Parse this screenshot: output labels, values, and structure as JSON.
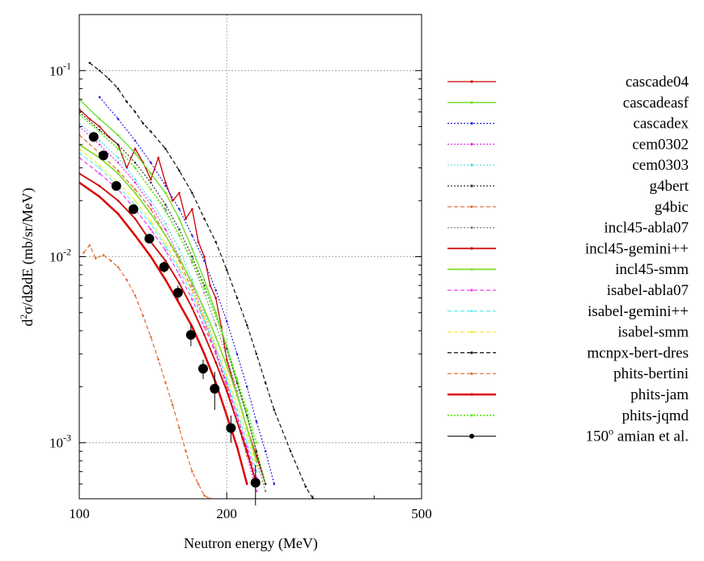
{
  "chart_data": {
    "type": "line",
    "title": "",
    "xlabel": "Neutron energy (MeV)",
    "ylabel_parts": {
      "d": "d",
      "sup": "2",
      "rest": "σ/dΩdE (mb/sr/MeV)"
    },
    "x_scale": "log",
    "y_scale": "log",
    "xlim": [
      100,
      500
    ],
    "ylim": [
      0.0005,
      0.2
    ],
    "x_ticks": [
      {
        "value": 100,
        "label": "100"
      },
      {
        "value": 200,
        "label": "200"
      },
      {
        "value": 500,
        "label": "500"
      }
    ],
    "y_ticks": [
      {
        "value": 0.001,
        "base": "10",
        "exp": "-3"
      },
      {
        "value": 0.01,
        "base": "10",
        "exp": "-2"
      },
      {
        "value": 0.1,
        "base": "10",
        "exp": "-1"
      }
    ],
    "grid": true,
    "legend_position": "right",
    "experiment_label_parts": {
      "num": "150",
      "sup": "o",
      "rest": " amian et al."
    },
    "series": [
      {
        "name": "cascade04",
        "color": "#cc0000",
        "style": "solid",
        "width": 1.3,
        "x": [
          100,
          105,
          110,
          115,
          120,
          125,
          130,
          135,
          140,
          145,
          150,
          155,
          160,
          165,
          170,
          175,
          180,
          185,
          190,
          195,
          200,
          210,
          220,
          230,
          240
        ],
        "y": [
          0.062,
          0.055,
          0.05,
          0.044,
          0.04,
          0.03,
          0.038,
          0.032,
          0.026,
          0.034,
          0.025,
          0.02,
          0.022,
          0.016,
          0.018,
          0.012,
          0.01,
          0.007,
          0.006,
          0.0042,
          0.0028,
          0.0018,
          0.0012,
          0.00085,
          0.0006
        ]
      },
      {
        "name": "cascadeasf",
        "color": "#66dd22",
        "style": "solid",
        "width": 1.3,
        "x": [
          100,
          110,
          120,
          130,
          140,
          150,
          160,
          170,
          180,
          190,
          200,
          210,
          220,
          230,
          240
        ],
        "y": [
          0.07,
          0.055,
          0.045,
          0.036,
          0.028,
          0.022,
          0.016,
          0.011,
          0.0075,
          0.005,
          0.0033,
          0.0021,
          0.0014,
          0.0009,
          0.0006
        ]
      },
      {
        "name": "cascadex",
        "color": "#2222dd",
        "style": "dotted",
        "width": 1.2,
        "x": [
          110,
          120,
          130,
          140,
          150,
          160,
          170,
          180,
          190,
          200,
          210,
          220,
          230,
          240,
          250
        ],
        "y": [
          0.072,
          0.055,
          0.042,
          0.032,
          0.024,
          0.018,
          0.013,
          0.0095,
          0.0066,
          0.0045,
          0.003,
          0.002,
          0.0013,
          0.0009,
          0.0006
        ]
      },
      {
        "name": "cem0302",
        "color": "#dd33dd",
        "style": "dotted",
        "width": 1.2,
        "x": [
          100,
          110,
          120,
          130,
          140,
          150,
          160,
          170,
          180,
          190,
          200,
          210,
          220,
          230
        ],
        "y": [
          0.05,
          0.04,
          0.032,
          0.025,
          0.019,
          0.014,
          0.01,
          0.007,
          0.0047,
          0.0031,
          0.002,
          0.0013,
          0.00085,
          0.00055
        ]
      },
      {
        "name": "cem0303",
        "color": "#55dddd",
        "style": "dotted",
        "width": 1.2,
        "x": [
          100,
          110,
          120,
          130,
          140,
          150,
          160,
          170,
          180,
          190,
          200,
          210,
          220,
          230
        ],
        "y": [
          0.052,
          0.042,
          0.034,
          0.026,
          0.02,
          0.015,
          0.011,
          0.0075,
          0.005,
          0.0033,
          0.0021,
          0.0014,
          0.0009,
          0.0006
        ]
      },
      {
        "name": "g4bert",
        "color": "#333333",
        "style": "dotted",
        "width": 1.2,
        "x": [
          100,
          110,
          120,
          130,
          140,
          150,
          160,
          170,
          180,
          190,
          200,
          210,
          220,
          230,
          240
        ],
        "y": [
          0.06,
          0.048,
          0.04,
          0.032,
          0.025,
          0.019,
          0.014,
          0.01,
          0.007,
          0.0048,
          0.0032,
          0.0021,
          0.0014,
          0.0009,
          0.0006
        ]
      },
      {
        "name": "g4bic",
        "color": "#e06a30",
        "style": "dashed",
        "width": 1.2,
        "x": [
          100,
          110,
          120,
          130,
          140,
          150,
          160,
          170,
          180,
          190,
          200,
          210,
          220
        ],
        "y": [
          0.045,
          0.036,
          0.029,
          0.023,
          0.018,
          0.013,
          0.0095,
          0.0066,
          0.0045,
          0.003,
          0.002,
          0.0013,
          0.00085
        ]
      },
      {
        "name": "incl45-abla07",
        "color": "#888888",
        "style": "dotted",
        "width": 1.2,
        "x": [
          100,
          110,
          120,
          130,
          140,
          150,
          160,
          170,
          180,
          190,
          200,
          210,
          220,
          230,
          240
        ],
        "y": [
          0.058,
          0.047,
          0.038,
          0.03,
          0.023,
          0.018,
          0.013,
          0.0093,
          0.0064,
          0.0043,
          0.0029,
          0.0019,
          0.0012,
          0.0008,
          0.00055
        ]
      },
      {
        "name": "incl45-gemini++",
        "color": "#cc0000",
        "style": "solid",
        "width": 1.8,
        "x": [
          100,
          110,
          120,
          130,
          140,
          150,
          160,
          170,
          180,
          190,
          200,
          210,
          220,
          230
        ],
        "y": [
          0.028,
          0.024,
          0.02,
          0.016,
          0.012,
          0.0095,
          0.0072,
          0.0053,
          0.0038,
          0.0027,
          0.0019,
          0.0013,
          0.0009,
          0.0006
        ]
      },
      {
        "name": "incl45-smm",
        "color": "#88dd33",
        "style": "solid",
        "width": 1.8,
        "x": [
          100,
          110,
          120,
          130,
          140,
          150,
          160,
          170,
          180,
          190,
          200,
          210,
          220,
          230
        ],
        "y": [
          0.04,
          0.034,
          0.028,
          0.022,
          0.017,
          0.013,
          0.0098,
          0.0072,
          0.0052,
          0.0037,
          0.0026,
          0.0018,
          0.0012,
          0.0008
        ]
      },
      {
        "name": "isabel-abla07",
        "color": "#ee44ee",
        "style": "dashed",
        "width": 1.3,
        "x": [
          100,
          110,
          120,
          130,
          140,
          150,
          160,
          170,
          180,
          190,
          200,
          210,
          220,
          230
        ],
        "y": [
          0.034,
          0.028,
          0.023,
          0.018,
          0.014,
          0.0108,
          0.008,
          0.0059,
          0.0042,
          0.003,
          0.0021,
          0.0014,
          0.00095,
          0.00065
        ]
      },
      {
        "name": "isabel-gemini++",
        "color": "#66eeee",
        "style": "dashed",
        "width": 1.3,
        "x": [
          100,
          110,
          120,
          130,
          140,
          150,
          160,
          170,
          180,
          190,
          200,
          210,
          220,
          230
        ],
        "y": [
          0.036,
          0.03,
          0.024,
          0.019,
          0.015,
          0.0113,
          0.0085,
          0.0062,
          0.0045,
          0.0032,
          0.0022,
          0.0015,
          0.001,
          0.0007
        ]
      },
      {
        "name": "isabel-smm",
        "color": "#eeee44",
        "style": "dashed",
        "width": 1.3,
        "x": [
          100,
          110,
          120,
          130,
          140,
          150,
          160,
          170,
          180,
          190,
          200,
          210,
          220,
          230
        ],
        "y": [
          0.038,
          0.031,
          0.025,
          0.02,
          0.0155,
          0.0118,
          0.0088,
          0.0065,
          0.0047,
          0.0033,
          0.0023,
          0.0016,
          0.0011,
          0.00075
        ]
      },
      {
        "name": "mcnpx-bert-dres",
        "color": "#111111",
        "style": "dashed",
        "width": 1.2,
        "x": [
          105,
          110,
          115,
          120,
          125,
          130,
          135,
          140,
          150,
          160,
          170,
          180,
          190,
          200,
          210,
          220,
          230,
          240,
          250,
          270,
          290,
          300
        ],
        "y": [
          0.11,
          0.1,
          0.09,
          0.08,
          0.068,
          0.06,
          0.052,
          0.047,
          0.038,
          0.029,
          0.022,
          0.016,
          0.012,
          0.0085,
          0.006,
          0.0043,
          0.003,
          0.0021,
          0.0015,
          0.0009,
          0.00058,
          0.0005
        ]
      },
      {
        "name": "phits-bertini",
        "color": "#e06a30",
        "style": "dashed",
        "width": 1.2,
        "x": [
          102,
          105,
          108,
          112,
          116,
          120,
          125,
          130,
          135,
          140,
          145,
          150,
          155,
          160,
          165,
          170,
          175,
          180,
          185
        ],
        "y": [
          0.0105,
          0.0115,
          0.0098,
          0.0102,
          0.0095,
          0.0088,
          0.0075,
          0.0062,
          0.0048,
          0.0037,
          0.0028,
          0.0021,
          0.0016,
          0.0012,
          0.0009,
          0.0007,
          0.0006,
          0.00052,
          0.0005
        ]
      },
      {
        "name": "phits-jam",
        "color": "#dd0000",
        "style": "solid",
        "width": 2.5,
        "x": [
          100,
          110,
          120,
          130,
          140,
          150,
          160,
          170,
          180,
          190,
          200,
          210,
          220
        ],
        "y": [
          0.025,
          0.021,
          0.017,
          0.013,
          0.01,
          0.0075,
          0.0056,
          0.0042,
          0.003,
          0.0021,
          0.0014,
          0.00095,
          0.0006
        ]
      },
      {
        "name": "phits-jqmd",
        "color": "#66ee22",
        "style": "dotted",
        "width": 1.8,
        "x": [
          100,
          110,
          120,
          130,
          140,
          150,
          160,
          170,
          180,
          190,
          200,
          210,
          220,
          230
        ],
        "y": [
          0.058,
          0.047,
          0.038,
          0.03,
          0.023,
          0.0175,
          0.013,
          0.0095,
          0.0068,
          0.0048,
          0.0033,
          0.0022,
          0.0015,
          0.001
        ]
      }
    ],
    "experiment": {
      "x": [
        107,
        112,
        119,
        129,
        139,
        149,
        159,
        169,
        179,
        189,
        204,
        229
      ],
      "y": [
        0.044,
        0.035,
        0.024,
        0.018,
        0.0125,
        0.0088,
        0.0064,
        0.0038,
        0.0025,
        0.00195,
        0.0012,
        0.00061
      ],
      "yerr": [
        0.002,
        0.0015,
        0.001,
        0.0009,
        0.0007,
        0.0006,
        0.0006,
        0.0005,
        0.0003,
        0.00045,
        0.0002,
        0.00015
      ]
    }
  }
}
